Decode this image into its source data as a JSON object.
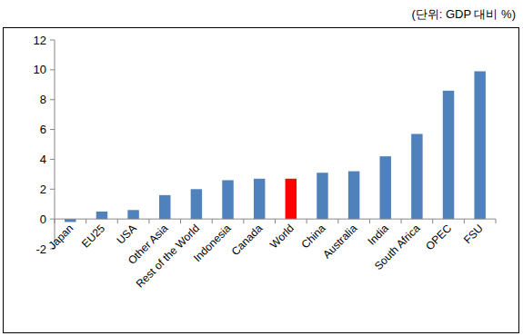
{
  "chart_data": {
    "type": "bar",
    "subtitle": "(단위: GDP 대비 %)",
    "categories": [
      "Japan",
      "EU25",
      "USA",
      "Other Asia",
      "Rest of the World",
      "Indonesia",
      "Canada",
      "World",
      "China",
      "Australia",
      "India",
      "South Africa",
      "OPEC",
      "FSU"
    ],
    "values": [
      -0.2,
      0.5,
      0.6,
      1.6,
      2.0,
      2.6,
      2.7,
      2.7,
      3.1,
      3.2,
      4.2,
      5.7,
      8.6,
      9.9
    ],
    "colors": [
      "#4f81bd",
      "#4f81bd",
      "#4f81bd",
      "#4f81bd",
      "#4f81bd",
      "#4f81bd",
      "#4f81bd",
      "#ff0000",
      "#4f81bd",
      "#4f81bd",
      "#4f81bd",
      "#4f81bd",
      "#4f81bd",
      "#4f81bd"
    ],
    "ylim": [
      -2,
      12
    ],
    "yticks": [
      -2,
      0,
      2,
      4,
      6,
      8,
      10,
      12
    ],
    "grid": false
  }
}
